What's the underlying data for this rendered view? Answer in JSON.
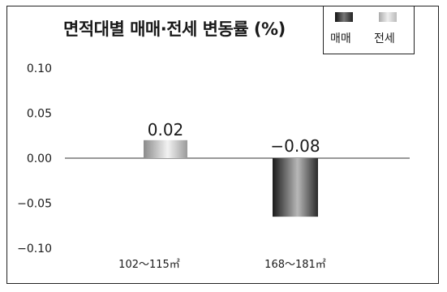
{
  "chart_data": {
    "type": "bar",
    "title": "면적대별 매매·전세 변동률 (%)",
    "categories": [
      "102～115㎡",
      "168～181㎡"
    ],
    "series": [
      {
        "name": "매매",
        "values": [
          0.02,
          -0.08
        ],
        "color": "#3a3a3a"
      },
      {
        "name": "전세",
        "values": [
          0.02,
          -0.08
        ],
        "color": "#c8c8c8"
      }
    ],
    "data_labels": [
      "0.02",
      "−0.08"
    ],
    "bar_colors": [
      "#c8c8c8",
      "#3a3a3a"
    ],
    "yticks": [
      "0.10",
      "0.05",
      "0.00",
      "−0.05",
      "−0.10"
    ],
    "ytick_values": [
      0.1,
      0.05,
      0.0,
      -0.05,
      -0.1
    ],
    "ylim": [
      -0.1,
      0.1
    ],
    "xlabel": "",
    "ylabel": "",
    "grid": false,
    "legend_position": "top-right"
  }
}
